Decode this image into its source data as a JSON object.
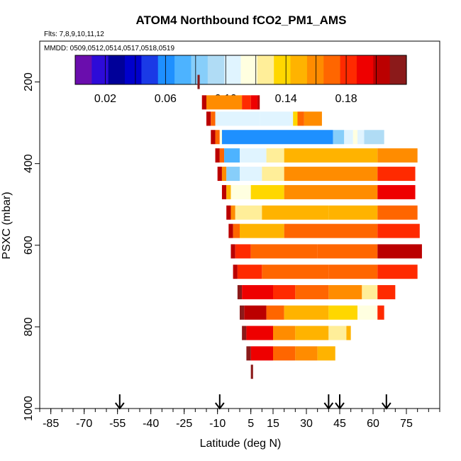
{
  "chart_data": {
    "type": "heatmap",
    "title": "ATOM4 Northbound fCO2_PM1_AMS",
    "subtitle_flights": "Flts: 7,8,9,10,11,12",
    "subtitle_dates": "MMDD: 0509,0512,0514,0517,0518,0519",
    "xlabel": "Latitude (deg N)",
    "ylabel": "PSXC (mbar)",
    "xlim": [
      -90,
      90
    ],
    "ylim": [
      1000,
      100
    ],
    "x_ticks": [
      -85,
      -70,
      -55,
      -40,
      -25,
      -10,
      5,
      15,
      30,
      45,
      60,
      75
    ],
    "x_tick_labels": [
      "-85",
      "-70",
      "-55",
      "-40",
      "-25",
      "-10",
      "5",
      "15",
      "30",
      "45",
      "60",
      "75"
    ],
    "y_ticks": [
      200,
      400,
      600,
      800,
      1000
    ],
    "y_tick_labels": [
      "200",
      "400",
      "600",
      "800",
      "1000"
    ],
    "colorbar": {
      "range": [
        0.0,
        0.22
      ],
      "tick_values": [
        0.02,
        0.06,
        0.1,
        0.14,
        0.18
      ],
      "tick_labels": [
        "0.02",
        "0.06",
        "0.10",
        "0.14",
        "0.18"
      ],
      "colors": [
        "#6a0dad",
        "#2d0bd8",
        "#000099",
        "#0000cc",
        "#1a3ae6",
        "#1e90ff",
        "#4db3ff",
        "#87cefa",
        "#b0dcf5",
        "#e0f4ff",
        "#ffffe0",
        "#ffee99",
        "#ffd700",
        "#ffb300",
        "#ff8c00",
        "#ff6600",
        "#ff2a00",
        "#ee0000",
        "#bb0000",
        "#8b1a1a"
      ]
    },
    "arrow_latitudes": [
      -54,
      -9,
      40,
      45,
      66
    ],
    "bands": [
      {
        "p": 200,
        "segments": [
          [
            -19,
            -18,
            0.21
          ]
        ]
      },
      {
        "p": 250,
        "segments": [
          [
            -17,
            -15,
            0.2
          ],
          [
            -15,
            1,
            0.16
          ],
          [
            1,
            5,
            0.18
          ],
          [
            5,
            8,
            0.19
          ],
          [
            8,
            9,
            0.2
          ]
        ]
      },
      {
        "p": 290,
        "segments": [
          [
            -15,
            -13,
            0.2
          ],
          [
            -13,
            -11,
            0.17
          ],
          [
            -11,
            9,
            0.105
          ],
          [
            9,
            24,
            0.105
          ],
          [
            24,
            26,
            0.14
          ],
          [
            26,
            29,
            0.17
          ],
          [
            29,
            37,
            0.155
          ]
        ]
      },
      {
        "p": 335,
        "segments": [
          [
            -13,
            -11,
            0.2
          ],
          [
            -11,
            -9,
            0.17
          ],
          [
            -9,
            -8,
            0.11
          ],
          [
            -8,
            42,
            0.055
          ],
          [
            42,
            47,
            0.08
          ],
          [
            47,
            51,
            0.1
          ],
          [
            51,
            53,
            0.12
          ],
          [
            53,
            56,
            0.105
          ],
          [
            56,
            65,
            0.095
          ]
        ]
      },
      {
        "p": 380,
        "segments": [
          [
            -11,
            -9,
            0.2
          ],
          [
            -9,
            -7,
            0.17
          ],
          [
            -7,
            0,
            0.07
          ],
          [
            0,
            12,
            0.1
          ],
          [
            12,
            20,
            0.125
          ],
          [
            20,
            62,
            0.15
          ],
          [
            62,
            80,
            0.16
          ]
        ]
      },
      {
        "p": 425,
        "segments": [
          [
            -10,
            -8,
            0.2
          ],
          [
            -8,
            -6,
            0.16
          ],
          [
            -6,
            0,
            0.085
          ],
          [
            0,
            10,
            0.1
          ],
          [
            10,
            20,
            0.13
          ],
          [
            20,
            62,
            0.16
          ],
          [
            62,
            79,
            0.185
          ]
        ]
      },
      {
        "p": 470,
        "segments": [
          [
            -8,
            -6,
            0.2
          ],
          [
            -6,
            -4,
            0.15
          ],
          [
            -4,
            5,
            0.11
          ],
          [
            5,
            20,
            0.14
          ],
          [
            20,
            62,
            0.16
          ],
          [
            62,
            79,
            0.19
          ]
        ]
      },
      {
        "p": 520,
        "segments": [
          [
            -6,
            -4,
            0.2
          ],
          [
            -4,
            -2,
            0.16
          ],
          [
            -2,
            10,
            0.13
          ],
          [
            10,
            40,
            0.15
          ],
          [
            40,
            62,
            0.15
          ],
          [
            62,
            80,
            0.17
          ]
        ]
      },
      {
        "p": 565,
        "segments": [
          [
            -5,
            -3,
            0.2
          ],
          [
            -3,
            0,
            0.17
          ],
          [
            0,
            20,
            0.15
          ],
          [
            20,
            62,
            0.165
          ],
          [
            62,
            81,
            0.18
          ]
        ]
      },
      {
        "p": 615,
        "segments": [
          [
            -4,
            -2,
            0.2
          ],
          [
            -2,
            5,
            0.185
          ],
          [
            5,
            35,
            0.175
          ],
          [
            35,
            62,
            0.17
          ],
          [
            62,
            82,
            0.205
          ]
        ]
      },
      {
        "p": 665,
        "segments": [
          [
            -3,
            -1,
            0.205
          ],
          [
            -1,
            10,
            0.185
          ],
          [
            10,
            40,
            0.175
          ],
          [
            40,
            62,
            0.17
          ],
          [
            62,
            80,
            0.185
          ]
        ]
      },
      {
        "p": 715,
        "segments": [
          [
            -1,
            1,
            0.21
          ],
          [
            1,
            15,
            0.195
          ],
          [
            15,
            25,
            0.185
          ],
          [
            25,
            40,
            0.175
          ],
          [
            40,
            55,
            0.16
          ],
          [
            55,
            62,
            0.13
          ],
          [
            62,
            70,
            0.185
          ]
        ]
      },
      {
        "p": 765,
        "segments": [
          [
            0,
            2,
            0.21
          ],
          [
            2,
            12,
            0.2
          ],
          [
            12,
            20,
            0.17
          ],
          [
            20,
            40,
            0.15
          ],
          [
            40,
            53,
            0.14
          ],
          [
            53,
            62,
            0.115
          ],
          [
            62,
            65,
            0.18
          ]
        ]
      },
      {
        "p": 815,
        "segments": [
          [
            1,
            3,
            0.21
          ],
          [
            3,
            15,
            0.195
          ],
          [
            15,
            25,
            0.16
          ],
          [
            25,
            40,
            0.145
          ],
          [
            40,
            48,
            0.13
          ],
          [
            48,
            50,
            0.15
          ]
        ]
      },
      {
        "p": 865,
        "segments": [
          [
            3,
            5,
            0.21
          ],
          [
            5,
            15,
            0.195
          ],
          [
            15,
            25,
            0.175
          ],
          [
            25,
            35,
            0.16
          ],
          [
            35,
            43,
            0.15
          ]
        ]
      },
      {
        "p": 910,
        "segments": [
          [
            5,
            6,
            0.21
          ]
        ]
      }
    ]
  }
}
